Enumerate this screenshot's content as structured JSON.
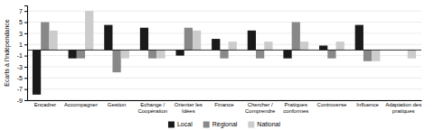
{
  "chart_data": {
    "type": "bar",
    "ylabel": "Ecarts à l'indépendance",
    "categories": [
      "Encadrer",
      "Accompagner",
      "Gestion",
      "Echange /\nCoopération",
      "Orienter les\nIdées",
      "Finance",
      "Chercher /\nComprendre",
      "Pratiques\nconformes",
      "Controverse",
      "Influence",
      "Adaptation des\npratiques"
    ],
    "series": [
      {
        "name": "Local",
        "color": "#1a1a1a",
        "values": [
          -8.0,
          -1.5,
          4.5,
          4.0,
          -1.0,
          2.0,
          3.5,
          -1.5,
          0.8,
          4.5,
          0.0
        ]
      },
      {
        "name": "Régional",
        "color": "#888888",
        "values": [
          5.0,
          -1.5,
          -4.0,
          -1.5,
          4.0,
          -1.5,
          -1.5,
          5.0,
          -1.5,
          -2.0,
          0.0
        ]
      },
      {
        "name": "National",
        "color": "#cccccc",
        "values": [
          3.5,
          7.0,
          -1.5,
          -1.5,
          3.5,
          1.5,
          1.5,
          1.5,
          1.5,
          -2.0,
          -1.5
        ]
      }
    ],
    "ylim": [
      -9,
      8
    ],
    "yticks": [
      -9,
      -7,
      -5,
      -3,
      -1,
      1,
      3,
      5,
      7
    ],
    "grid": true,
    "legend": "bottom"
  }
}
